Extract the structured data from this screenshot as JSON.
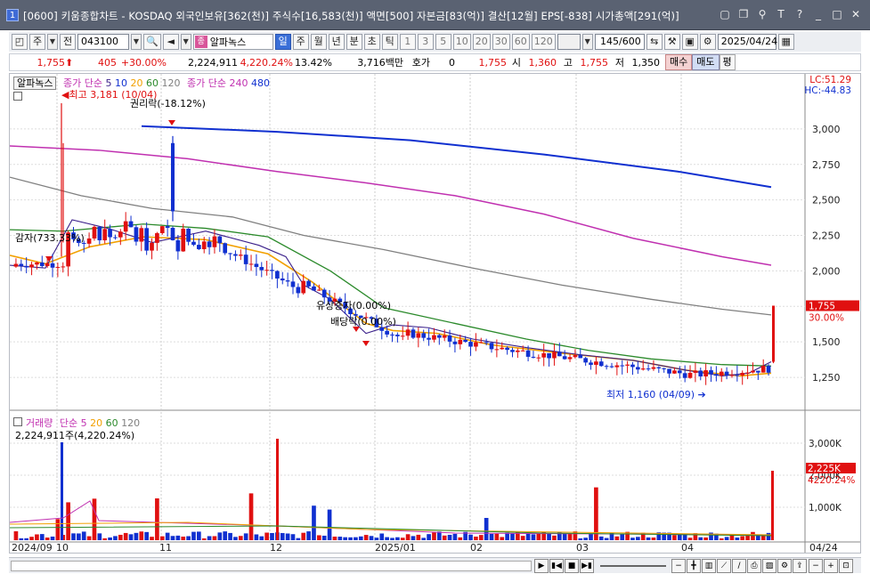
{
  "title": {
    "num": "1",
    "text": "[0600] 키움종합차트 - KOSDAQ 외국인보유[362(천)] 주식수[16,583(천)] 액면[500] 자본금[83(억)] 결산[12월] EPS[-838] 시가총액[291(억)]"
  },
  "toolbar": {
    "main_select": "주",
    "all_label": "전",
    "code": "043100",
    "stock_name": "알파녹스",
    "stock_badge": "종",
    "periods": [
      "일",
      "주",
      "월",
      "년",
      "분",
      "초",
      "틱"
    ],
    "minutes": [
      "1",
      "3",
      "5",
      "10",
      "20",
      "30",
      "60",
      "120"
    ],
    "count": "145/600",
    "date": "2025/04/24"
  },
  "info": {
    "price": "1,755",
    "change": "405",
    "change_pct": "+30.00%",
    "volume": "2,224,911",
    "volume_pct": "4,220.24%",
    "turnover": "13.42%",
    "amount": "3,716백만",
    "quote_label": "호가",
    "quote_value": "0",
    "quote_price": "1,755",
    "open_label": "시",
    "open": "1,360",
    "high_label": "고",
    "high": "1,755",
    "low_label": "저",
    "low": "1,350",
    "buy": "매수",
    "sell": "매도",
    "flat": "평"
  },
  "price_legend": {
    "name": "알파녹스",
    "ma_label": "종가 단순",
    "ma_values": [
      "5",
      "10",
      "20",
      "60",
      "120"
    ],
    "ma2_label": "종가 단순",
    "ma2_values": [
      "240",
      "480"
    ],
    "lc": "LC:51.29",
    "hc": "HC:-44.83"
  },
  "annotations": {
    "high": "최고 3,181 (10/04)",
    "rights": "권리락(-18.12%)",
    "capital_reduction": "감자(733.33%)",
    "paid_increase": "유상증자(0.00%)",
    "dividend": "배당락(0.00%)",
    "low": "최저 1,160 (04/09)"
  },
  "price_axis": {
    "ticks": [
      "3,000",
      "2,750",
      "2,500",
      "2,250",
      "2,000",
      "1,750",
      "1,500",
      "1,250"
    ],
    "current_price": "1,755",
    "current_pct": "30.00%"
  },
  "volume_legend": {
    "label": "거래량",
    "ma_label": "단순",
    "ma_values": [
      "5",
      "20",
      "60",
      "120"
    ],
    "current": "2,224,911주(4,220.24%)"
  },
  "volume_axis": {
    "ticks": [
      "3,000K",
      "2,000K",
      "1,000K"
    ],
    "current": "2,225K",
    "current_pct": "4220.24%"
  },
  "date_axis": {
    "labels": [
      "2024/09",
      "10",
      "11",
      "12",
      "2025/01",
      "02",
      "03",
      "04",
      "04/24"
    ]
  },
  "colors": {
    "up": "#e01010",
    "down": "#1030d0",
    "ma5": "#3a1f8a",
    "ma20": "#f2a000",
    "ma60": "#2b8a2b",
    "ma120": "#808080",
    "ma240": "#c030b0",
    "ma480": "#1030d0"
  }
}
